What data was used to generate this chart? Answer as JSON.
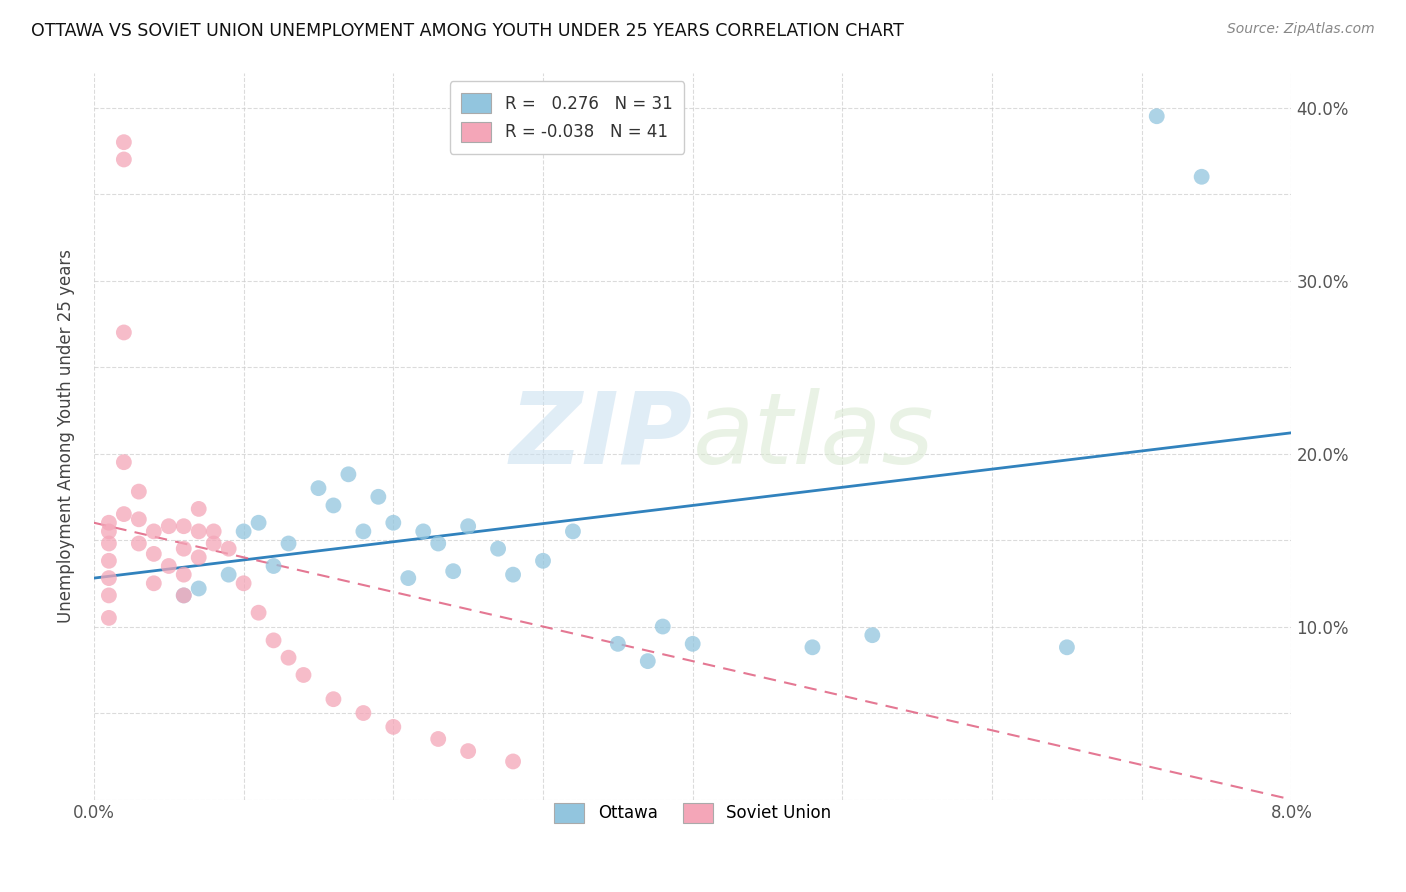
{
  "title": "OTTAWA VS SOVIET UNION UNEMPLOYMENT AMONG YOUTH UNDER 25 YEARS CORRELATION CHART",
  "source": "Source: ZipAtlas.com",
  "ylabel": "Unemployment Among Youth under 25 years",
  "xlabel": "",
  "xlim": [
    0.0,
    0.08
  ],
  "ylim": [
    0.0,
    0.42
  ],
  "legend_blue_label": "R =   0.276   N = 31",
  "legend_pink_label": "R = -0.038   N = 41",
  "legend_ottawa": "Ottawa",
  "legend_soviet": "Soviet Union",
  "blue_color": "#92c5de",
  "pink_color": "#f4a6b8",
  "blue_line_color": "#3182bd",
  "pink_line_color": "#e06080",
  "blue_line_x": [
    0.0,
    0.08
  ],
  "blue_line_y": [
    0.128,
    0.212
  ],
  "pink_line_x": [
    0.0,
    0.08
  ],
  "pink_line_y": [
    0.16,
    0.0
  ],
  "ottawa_x": [
    0.006,
    0.007,
    0.009,
    0.01,
    0.011,
    0.012,
    0.013,
    0.015,
    0.016,
    0.017,
    0.018,
    0.019,
    0.02,
    0.021,
    0.022,
    0.023,
    0.024,
    0.025,
    0.027,
    0.028,
    0.03,
    0.032,
    0.035,
    0.037,
    0.038,
    0.04,
    0.048,
    0.052,
    0.065,
    0.071,
    0.074
  ],
  "ottawa_y": [
    0.118,
    0.122,
    0.13,
    0.155,
    0.16,
    0.135,
    0.148,
    0.18,
    0.17,
    0.188,
    0.155,
    0.175,
    0.16,
    0.128,
    0.155,
    0.148,
    0.132,
    0.158,
    0.145,
    0.13,
    0.138,
    0.155,
    0.09,
    0.08,
    0.1,
    0.09,
    0.088,
    0.095,
    0.088,
    0.395,
    0.36
  ],
  "soviet_x": [
    0.001,
    0.001,
    0.001,
    0.001,
    0.001,
    0.001,
    0.001,
    0.002,
    0.002,
    0.002,
    0.002,
    0.002,
    0.003,
    0.003,
    0.003,
    0.004,
    0.004,
    0.004,
    0.005,
    0.005,
    0.006,
    0.006,
    0.006,
    0.006,
    0.007,
    0.007,
    0.007,
    0.008,
    0.008,
    0.009,
    0.01,
    0.011,
    0.012,
    0.013,
    0.014,
    0.016,
    0.018,
    0.02,
    0.023,
    0.025,
    0.028
  ],
  "soviet_y": [
    0.155,
    0.16,
    0.148,
    0.138,
    0.128,
    0.118,
    0.105,
    0.38,
    0.37,
    0.27,
    0.195,
    0.165,
    0.178,
    0.162,
    0.148,
    0.155,
    0.142,
    0.125,
    0.158,
    0.135,
    0.158,
    0.145,
    0.13,
    0.118,
    0.168,
    0.155,
    0.14,
    0.155,
    0.148,
    0.145,
    0.125,
    0.108,
    0.092,
    0.082,
    0.072,
    0.058,
    0.05,
    0.042,
    0.035,
    0.028,
    0.022
  ]
}
